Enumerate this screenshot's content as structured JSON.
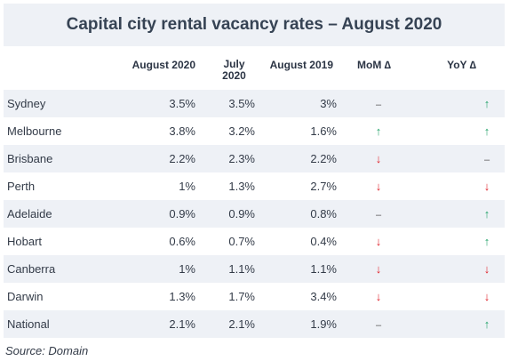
{
  "title": "Capital city rental vacancy rates – August 2020",
  "headers": {
    "city": "",
    "aug2020": "August 2020",
    "jul2020_line1": "July",
    "jul2020_line2": "2020",
    "aug2019": "August 2019",
    "mom": "MoM ∆",
    "yoy": "YoY ∆"
  },
  "rows": [
    {
      "city": "Sydney",
      "aug2020": "3.5%",
      "jul2020": "3.5%",
      "aug2019": "3%",
      "mom": "–",
      "yoy": "↑"
    },
    {
      "city": "Melbourne",
      "aug2020": "3.8%",
      "jul2020": "3.2%",
      "aug2019": "1.6%",
      "mom": "↑",
      "yoy": "↑"
    },
    {
      "city": "Brisbane",
      "aug2020": "2.2%",
      "jul2020": "2.3%",
      "aug2019": "2.2%",
      "mom": "↓",
      "yoy": "–"
    },
    {
      "city": "Perth",
      "aug2020": "1%",
      "jul2020": "1.3%",
      "aug2019": "2.7%",
      "mom": "↓",
      "yoy": "↓"
    },
    {
      "city": "Adelaide",
      "aug2020": "0.9%",
      "jul2020": "0.9%",
      "aug2019": "0.8%",
      "mom": "–",
      "yoy": "↑"
    },
    {
      "city": "Hobart",
      "aug2020": "0.6%",
      "jul2020": "0.7%",
      "aug2019": "0.4%",
      "mom": "↓",
      "yoy": "↑"
    },
    {
      "city": "Canberra",
      "aug2020": "1%",
      "jul2020": "1.1%",
      "aug2019": "1.1%",
      "mom": "↓",
      "yoy": "↓"
    },
    {
      "city": "Darwin",
      "aug2020": "1.3%",
      "jul2020": "1.7%",
      "aug2019": "3.4%",
      "mom": "↓",
      "yoy": "↓"
    },
    {
      "city": "National",
      "aug2020": "2.1%",
      "jul2020": "2.1%",
      "aug2019": "1.9%",
      "mom": "–",
      "yoy": "↑"
    }
  ],
  "source": "Source: Domain",
  "colors": {
    "up": "#23a36a",
    "down": "#e0232b",
    "stripe": "#eef1f6",
    "title_text": "#364354"
  }
}
